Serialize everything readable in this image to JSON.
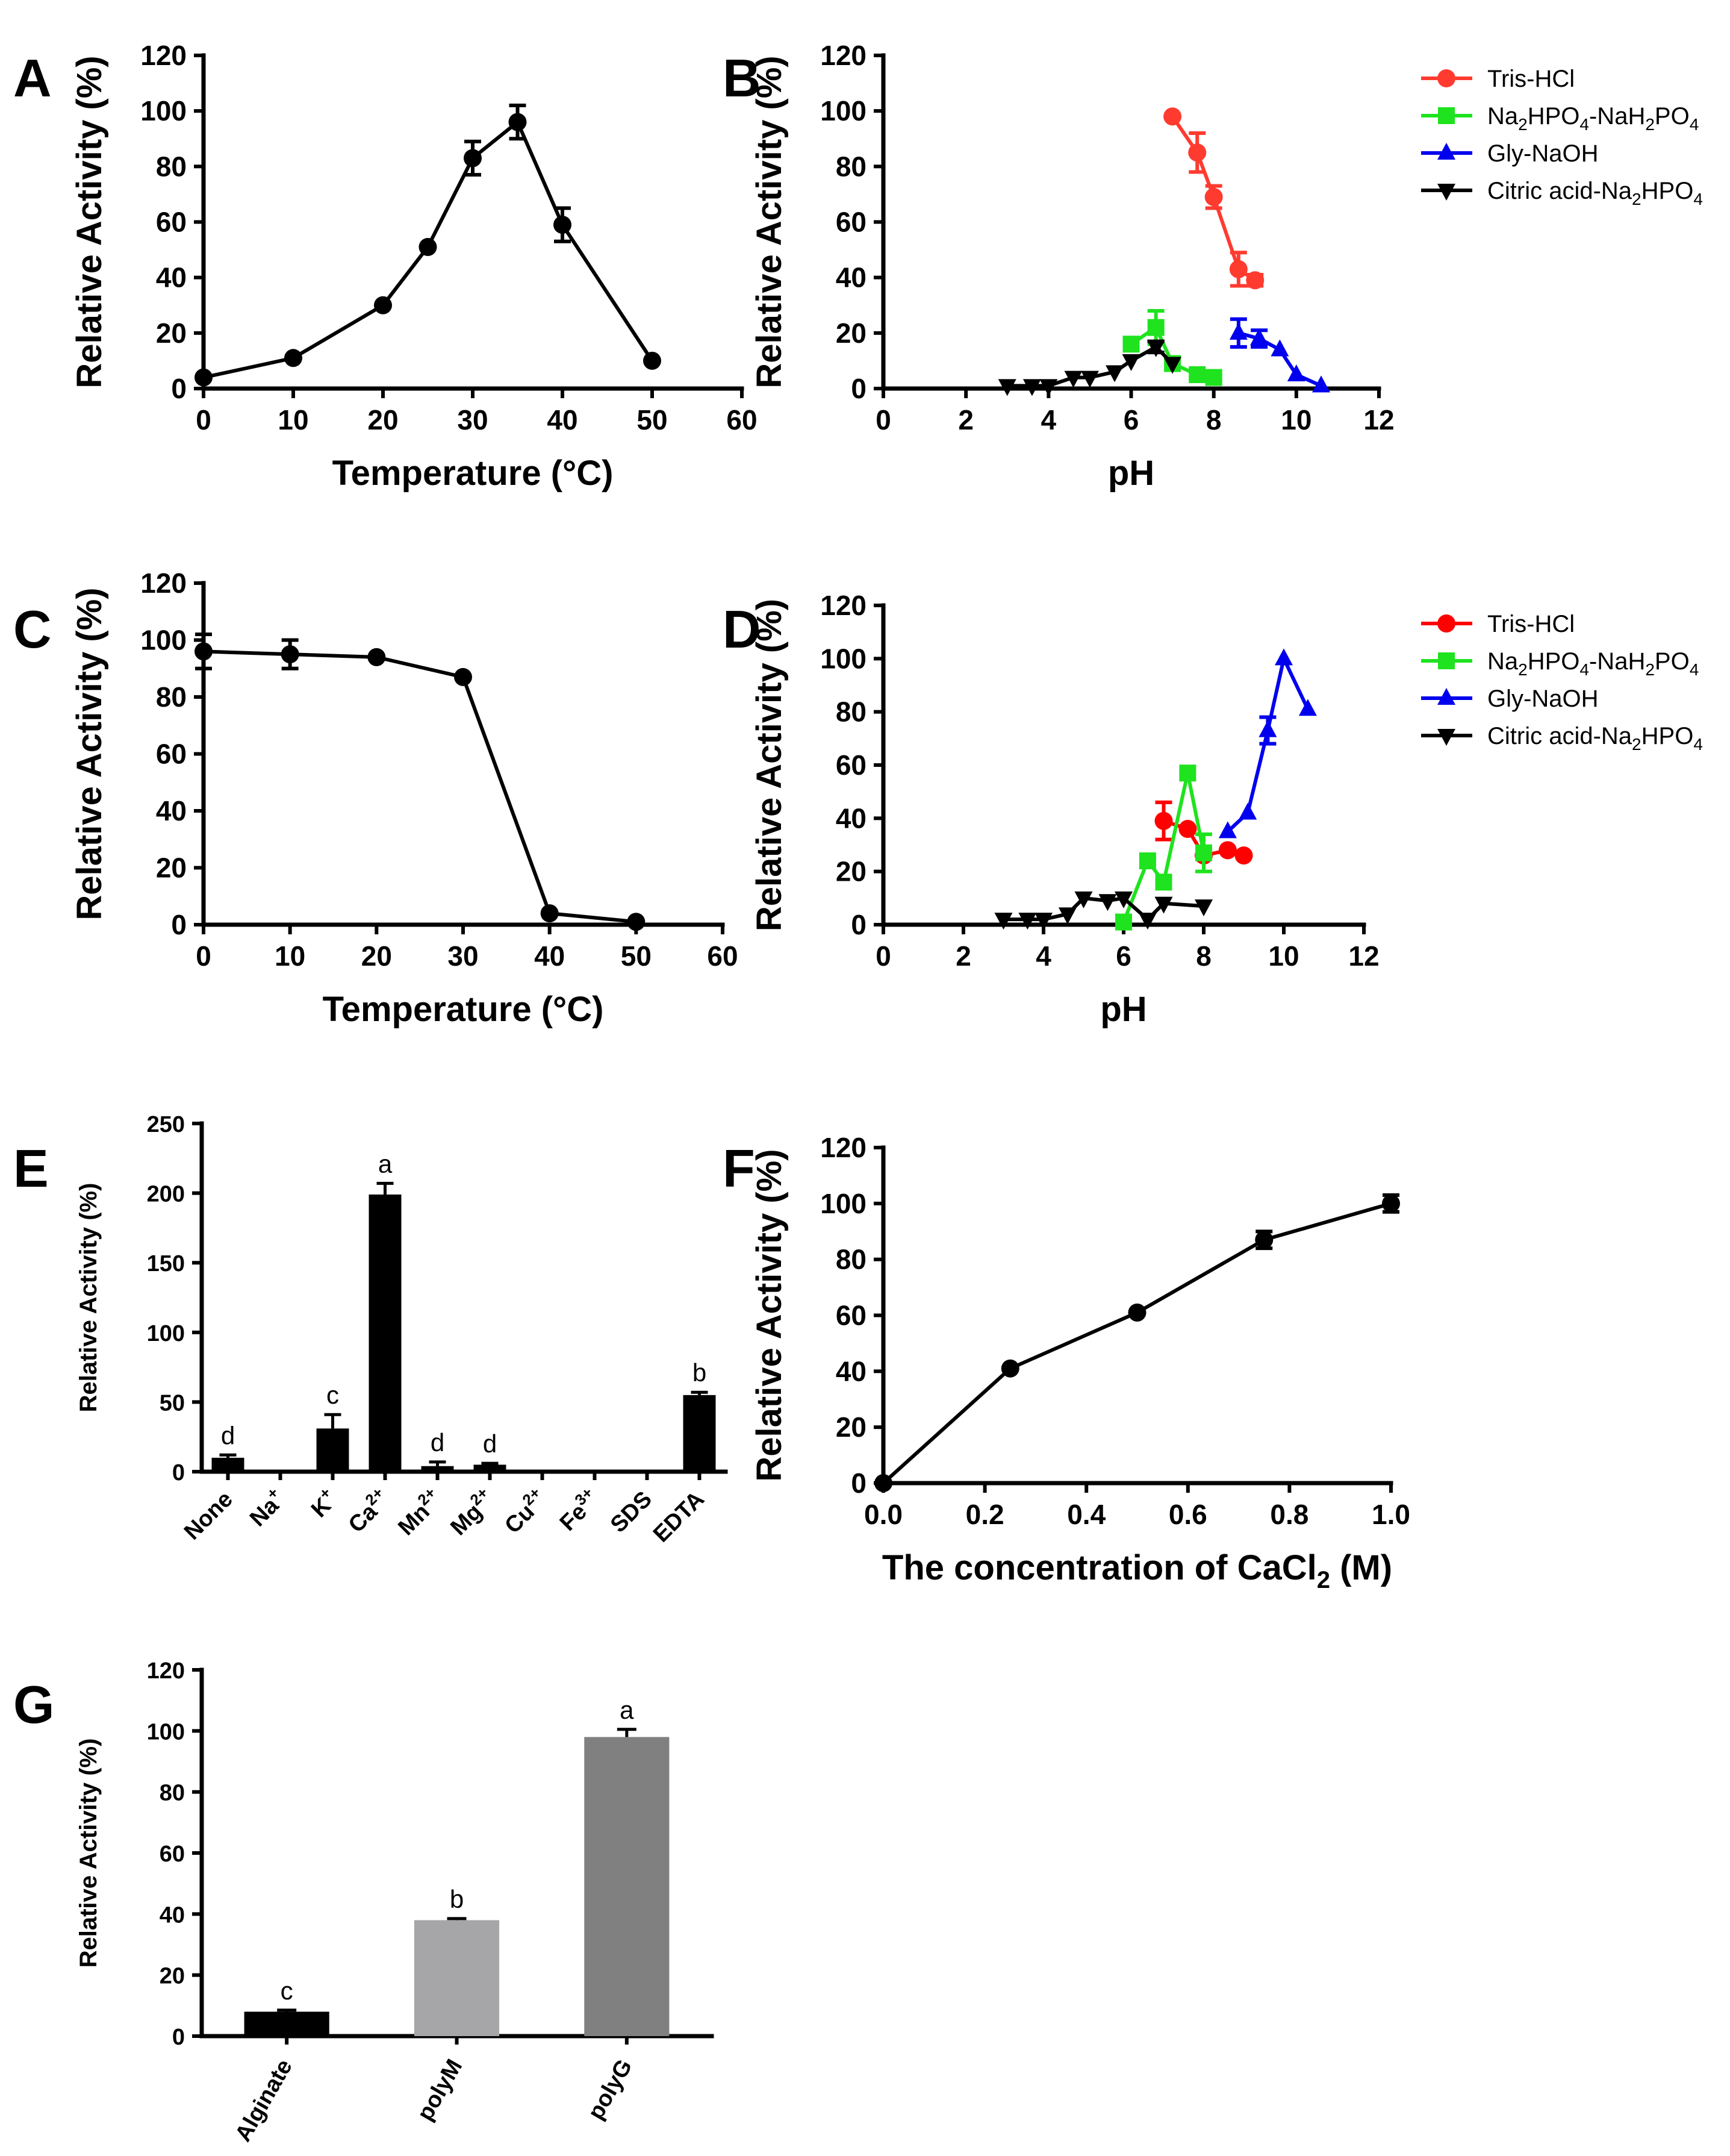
{
  "figure_title": "",
  "chart_data": [
    {
      "id": "A",
      "panel_label": "A",
      "type": "line",
      "xlabel": "Temperature (°C)",
      "ylabel": "Relative Activity (%)",
      "xlim": [
        0,
        60
      ],
      "ylim": [
        0,
        120
      ],
      "xticks": [
        "0",
        "10",
        "20",
        "30",
        "40",
        "50",
        "60"
      ],
      "yticks": [
        "0",
        "20",
        "40",
        "60",
        "80",
        "100",
        "120"
      ],
      "series": [
        {
          "name": "",
          "color": "#000000",
          "marker": "circle",
          "x": [
            0,
            10,
            20,
            25,
            30,
            35,
            40,
            50
          ],
          "y": [
            4,
            11,
            30,
            51,
            83,
            96,
            59,
            10
          ],
          "err": [
            0,
            0,
            0,
            0,
            6,
            6,
            6,
            0
          ]
        }
      ]
    },
    {
      "id": "B",
      "panel_label": "B",
      "type": "line",
      "xlabel": "pH",
      "ylabel": "Relative Activity (%)",
      "xlim": [
        0,
        12
      ],
      "ylim": [
        0,
        120
      ],
      "xticks": [
        "0",
        "2",
        "4",
        "6",
        "8",
        "10",
        "12"
      ],
      "yticks": [
        "0",
        "20",
        "40",
        "60",
        "80",
        "100",
        "120"
      ],
      "legend_position": "top-right",
      "series": [
        {
          "name": "Tris-HCl",
          "color": "#ff3b30",
          "marker": "circle",
          "x": [
            7.0,
            7.6,
            8.0,
            8.6,
            9.0
          ],
          "y": [
            98,
            85,
            69,
            43,
            39
          ],
          "err": [
            0,
            7,
            4,
            6,
            2
          ]
        },
        {
          "name": "Na2HPO4-NaH2PO4",
          "color": "#1ee31e",
          "marker": "square",
          "x": [
            6.0,
            6.6,
            7.0,
            7.6,
            8.0
          ],
          "y": [
            16,
            22,
            9,
            5,
            4
          ],
          "err": [
            0,
            6,
            2,
            1,
            1
          ]
        },
        {
          "name": "Gly-NaOH",
          "color": "#0000ee",
          "marker": "triangle",
          "x": [
            8.6,
            9.1,
            9.6,
            10.0,
            10.6
          ],
          "y": [
            20,
            18,
            14,
            5,
            1
          ],
          "err": [
            5,
            3,
            0,
            0,
            0
          ]
        },
        {
          "name": "Citric acid-Na2HPO4",
          "color": "#000000",
          "marker": "triangle-down",
          "x": [
            3.0,
            3.6,
            4.0,
            4.6,
            5.0,
            5.6,
            6.0,
            6.6,
            7.0
          ],
          "y": [
            1,
            1,
            1,
            4,
            4,
            6,
            10,
            15,
            9
          ],
          "err": [
            0,
            0,
            0,
            0,
            0,
            0,
            0,
            2,
            0
          ]
        }
      ]
    },
    {
      "id": "C",
      "panel_label": "C",
      "type": "line",
      "xlabel": "Temperature (°C)",
      "ylabel": "Relative Activity (%)",
      "xlim": [
        0,
        60
      ],
      "ylim": [
        0,
        120
      ],
      "xticks": [
        "0",
        "10",
        "20",
        "30",
        "40",
        "50",
        "60"
      ],
      "yticks": [
        "0",
        "20",
        "40",
        "60",
        "80",
        "100",
        "120"
      ],
      "series": [
        {
          "name": "",
          "color": "#000000",
          "marker": "circle",
          "x": [
            0,
            10,
            20,
            30,
            40,
            50
          ],
          "y": [
            96,
            95,
            94,
            87,
            4,
            1
          ],
          "err": [
            6,
            5,
            0,
            0,
            0,
            0
          ]
        }
      ]
    },
    {
      "id": "D",
      "panel_label": "D",
      "type": "line",
      "xlabel": "pH",
      "ylabel": "Relative Activity (%)",
      "xlim": [
        0,
        12
      ],
      "ylim": [
        0,
        120
      ],
      "xticks": [
        "0",
        "2",
        "4",
        "6",
        "8",
        "10",
        "12"
      ],
      "yticks": [
        "0",
        "20",
        "40",
        "60",
        "80",
        "100",
        "120"
      ],
      "legend_position": "top-right",
      "series": [
        {
          "name": "Tris-HCl",
          "color": "#ff0000",
          "marker": "circle",
          "x": [
            7.0,
            7.6,
            8.0,
            8.6,
            9.0
          ],
          "y": [
            39,
            36,
            26,
            28,
            26
          ],
          "err": [
            7,
            0,
            0,
            0,
            0
          ]
        },
        {
          "name": "Na2HPO4-NaH2PO4",
          "color": "#1ee31e",
          "marker": "square",
          "x": [
            6.0,
            6.6,
            7.0,
            7.6,
            8.0
          ],
          "y": [
            1,
            24,
            16,
            57,
            27
          ],
          "err": [
            0,
            0,
            0,
            0,
            7
          ]
        },
        {
          "name": "Gly-NaOH",
          "color": "#0000ee",
          "marker": "triangle",
          "x": [
            8.6,
            9.1,
            9.6,
            10.0,
            10.6
          ],
          "y": [
            35,
            42,
            73,
            100,
            81
          ],
          "err": [
            0,
            0,
            5,
            0,
            0
          ]
        },
        {
          "name": "Citric acid-Na2HPO4",
          "color": "#000000",
          "marker": "triangle-down",
          "x": [
            3.0,
            3.6,
            4.0,
            4.6,
            5.0,
            5.6,
            6.0,
            6.6,
            7.0,
            8.0
          ],
          "y": [
            2,
            2,
            2,
            4,
            10,
            9,
            10,
            2,
            8,
            7
          ],
          "err": [
            0,
            0,
            0,
            0,
            0,
            0,
            0,
            0,
            0,
            0
          ]
        }
      ]
    },
    {
      "id": "E",
      "panel_label": "E",
      "type": "bar",
      "ylabel": "Relative Activity (%)",
      "ylim": [
        0,
        250
      ],
      "yticks": [
        "0",
        "50",
        "100",
        "150",
        "200",
        "250"
      ],
      "categories": [
        {
          "base": "None",
          "sup": ""
        },
        {
          "base": "Na",
          "sup": "+"
        },
        {
          "base": "K",
          "sup": "+"
        },
        {
          "base": "Ca",
          "sup": "2+"
        },
        {
          "base": "Mn",
          "sup": "2+"
        },
        {
          "base": "Mg",
          "sup": "2+"
        },
        {
          "base": "Cu",
          "sup": "2+"
        },
        {
          "base": "Fe",
          "sup": "3+"
        },
        {
          "base": "SDS",
          "sup": ""
        },
        {
          "base": "EDTA",
          "sup": ""
        }
      ],
      "values": [
        10,
        0,
        31,
        199,
        4,
        5,
        0,
        0,
        0,
        55
      ],
      "errors": [
        2,
        0,
        10,
        8,
        3,
        1,
        0,
        0,
        0,
        2
      ],
      "significance": [
        "d",
        "",
        "c",
        "a",
        "d",
        "d",
        "",
        "",
        "",
        "b"
      ],
      "color": "#000000"
    },
    {
      "id": "F",
      "panel_label": "F",
      "type": "line",
      "xlabel_base": "The concentration of CaCl",
      "xlabel_sub": "2",
      "xlabel_tail": " (M)",
      "ylabel": "Relative Activity (%)",
      "xlim": [
        0,
        1.0
      ],
      "ylim": [
        0,
        120
      ],
      "xticks": [
        "0.0",
        "0.2",
        "0.4",
        "0.6",
        "0.8",
        "1.0"
      ],
      "yticks": [
        "0",
        "20",
        "40",
        "60",
        "80",
        "100",
        "120"
      ],
      "series": [
        {
          "name": "",
          "color": "#000000",
          "marker": "circle",
          "x": [
            0,
            0.25,
            0.5,
            0.75,
            1.0
          ],
          "y": [
            0,
            41,
            61,
            87,
            100
          ],
          "err": [
            0,
            0,
            0,
            3,
            3
          ]
        }
      ]
    },
    {
      "id": "G",
      "panel_label": "G",
      "type": "bar",
      "ylabel": "Relative Activity (%)",
      "ylim": [
        0,
        120
      ],
      "yticks": [
        "0",
        "20",
        "40",
        "60",
        "80",
        "100",
        "120"
      ],
      "categories": [
        "Alginate",
        "polyM",
        "polyG"
      ],
      "values": [
        8,
        38,
        98
      ],
      "errors": [
        0.5,
        0.5,
        2.5
      ],
      "significance": [
        "c",
        "b",
        "a"
      ],
      "colors": [
        "#000000",
        "#a6a6a8",
        "#808080"
      ]
    }
  ]
}
